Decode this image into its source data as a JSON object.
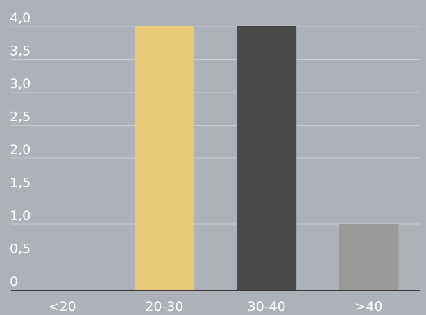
{
  "chart_data": {
    "type": "bar",
    "title": "",
    "xlabel": "",
    "ylabel": "",
    "categories": [
      "<20",
      "20-30",
      "30-40",
      ">40"
    ],
    "values": [
      0,
      4,
      4,
      1
    ],
    "bar_colors": [
      "#adb1b8",
      "#e8c976",
      "#4a4a4a",
      "#9a9a9a"
    ],
    "ylim": [
      0,
      4
    ],
    "yticks": [
      0,
      0.5,
      1,
      1.5,
      2,
      2.5,
      3,
      3.5,
      4
    ],
    "ytick_labels": [
      "0",
      "0,5",
      "1,0",
      "1,5",
      "2,0",
      "2,5",
      "3,0",
      "3,5",
      "4,0"
    ],
    "grid": true,
    "legend": "none",
    "background_color": "#adb1b8",
    "gridline_color": "#c9ccd1",
    "axis_color": "#3a3a3a",
    "text_color": "#ffffff"
  }
}
